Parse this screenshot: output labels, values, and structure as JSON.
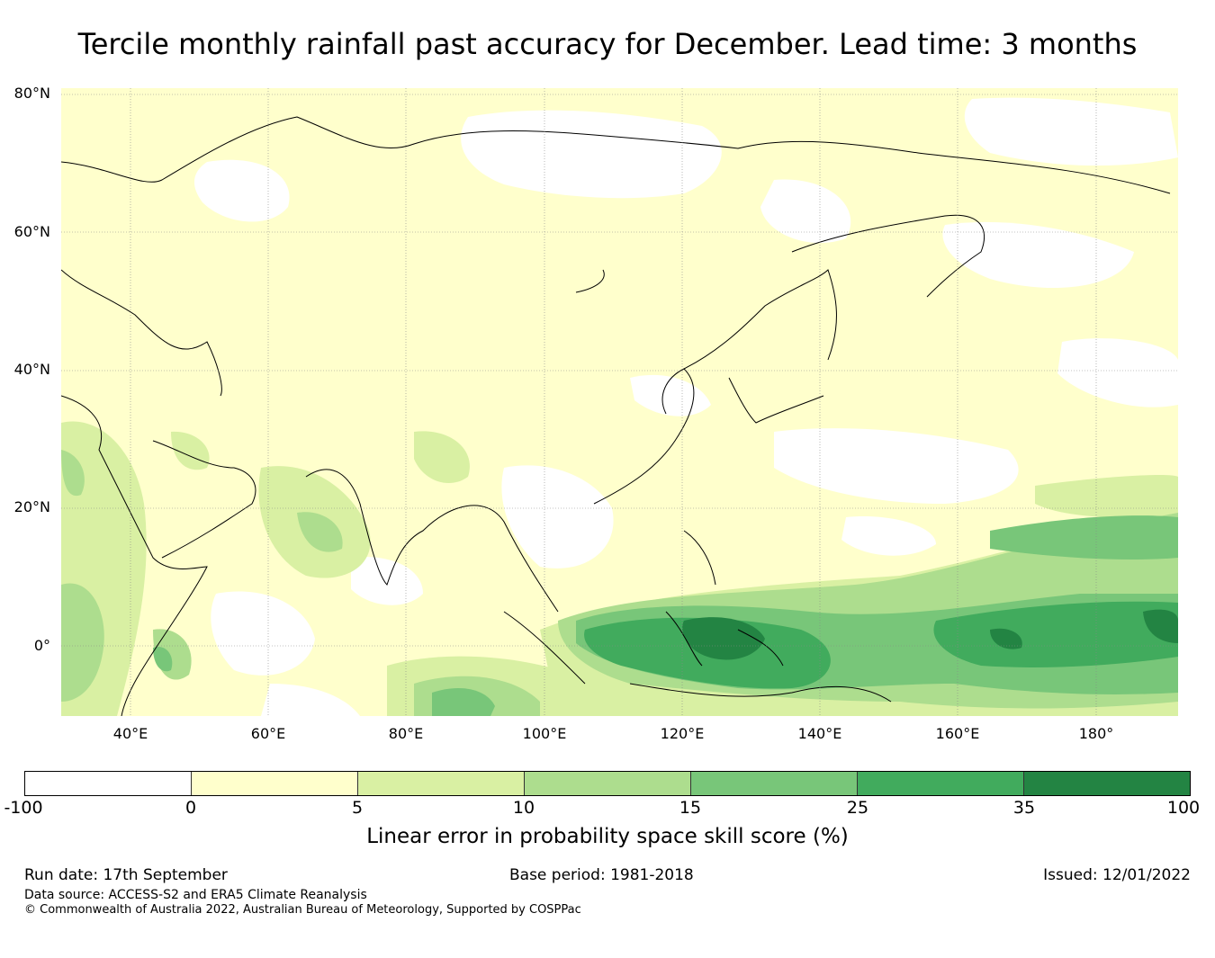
{
  "title": "Tercile monthly rainfall past accuracy for December. Lead time: 3 months",
  "map": {
    "region": "Asia and Western Pacific",
    "lat_labels": [
      "80°N",
      "60°N",
      "40°N",
      "20°N",
      "0°"
    ],
    "lon_labels": [
      "40°E",
      "60°E",
      "80°E",
      "100°E",
      "120°E",
      "140°E",
      "160°E",
      "180°"
    ],
    "lon_range": [
      30,
      192
    ],
    "lat_range": [
      -10,
      81
    ]
  },
  "colorbar": {
    "label": "Linear error in probability space skill score (%)",
    "ticks": [
      "-100",
      "0",
      "5",
      "10",
      "15",
      "25",
      "35",
      "100"
    ],
    "bins": [
      {
        "range": "-100 to 0",
        "color": "#ffffff"
      },
      {
        "range": "0 to 5",
        "color": "#ffffcc"
      },
      {
        "range": "5 to 10",
        "color": "#d9f0a3"
      },
      {
        "range": "10 to 15",
        "color": "#addd8e"
      },
      {
        "range": "15 to 25",
        "color": "#78c679"
      },
      {
        "range": "25 to 35",
        "color": "#41ab5d"
      },
      {
        "range": "35 to 100",
        "color": "#238443"
      }
    ]
  },
  "footer": {
    "run_date": "Run date: 17th September",
    "base_period": "Base period: 1981-2018",
    "issued": "Issued: 12/01/2022",
    "data_source": "Data source: ACCESS-S2 and ERA5 Climate Reanalysis",
    "copyright": "© Commonwealth of Australia 2022, Australian Bureau of Meteorology, Supported by COSPPac"
  }
}
